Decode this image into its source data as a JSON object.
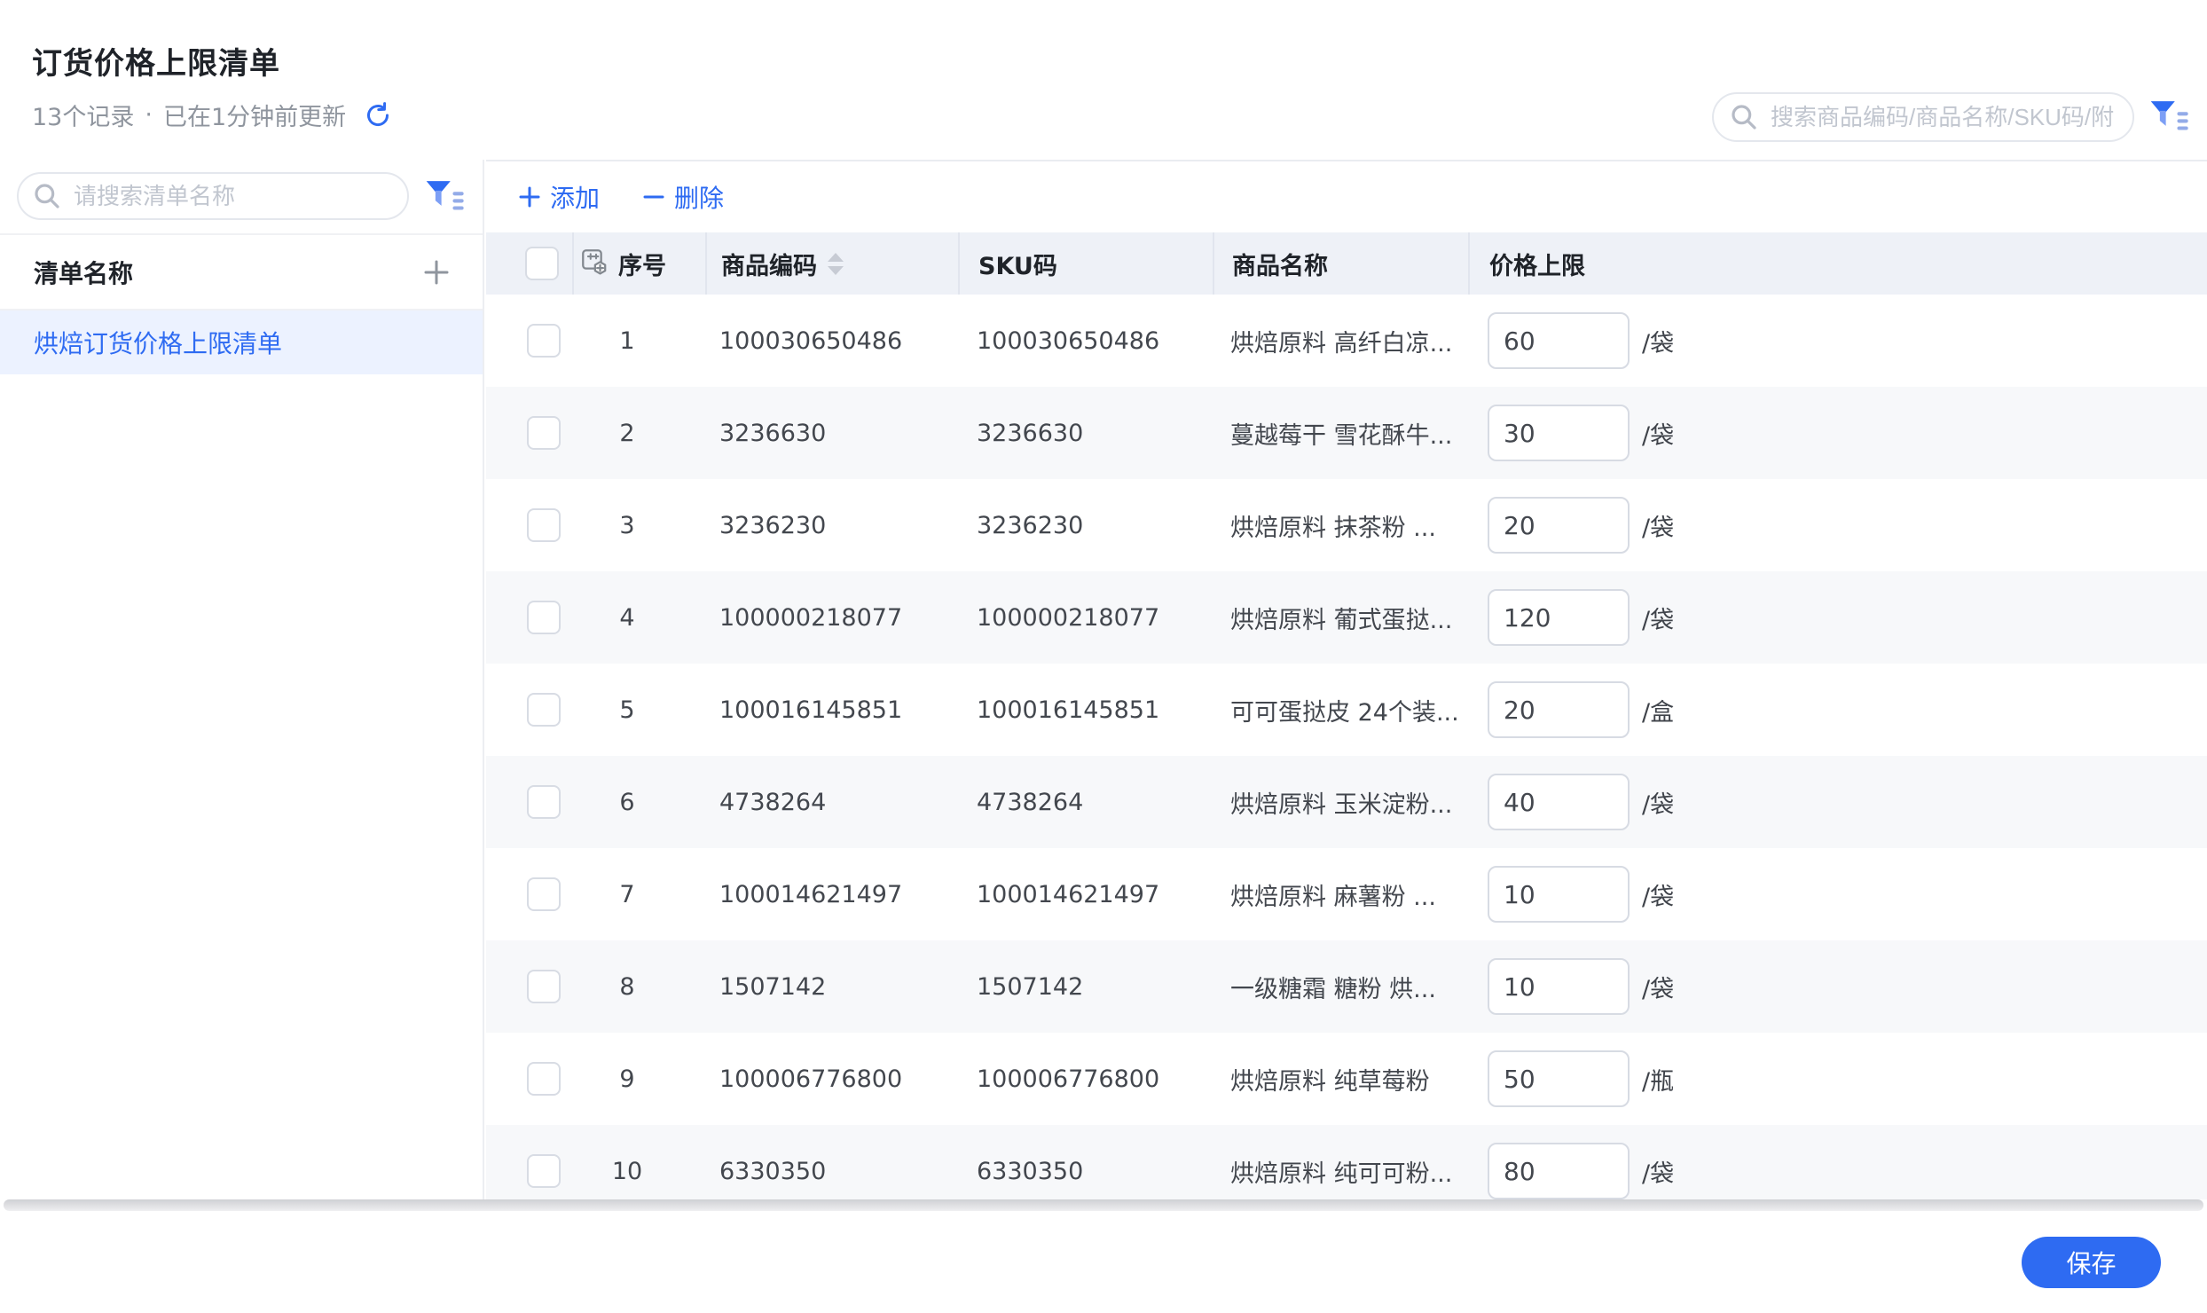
{
  "header": {
    "title": "订货价格上限清单",
    "record_count": "13个记录",
    "separator": "·",
    "updated": "已在1分钟前更新",
    "search_placeholder": "搜索商品编码/商品名称/SKU码/附"
  },
  "sidebar": {
    "search_placeholder": "请搜索清单名称",
    "section_title": "清单名称",
    "items": [
      {
        "label": "烘焙订货价格上限清单",
        "selected": true
      }
    ]
  },
  "toolbar": {
    "add_label": "添加",
    "delete_label": "删除"
  },
  "table": {
    "columns": {
      "index": "序号",
      "product_code": "商品编码",
      "sku": "SKU码",
      "product_name": "商品名称",
      "price_cap": "价格上限"
    },
    "rows": [
      {
        "index": "1",
        "code": "100030650486",
        "sku": "100030650486",
        "name": "烘焙原料 高纤白凉...",
        "price": "60",
        "unit": "/袋"
      },
      {
        "index": "2",
        "code": "3236630",
        "sku": "3236630",
        "name": "蔓越莓干 雪花酥牛...",
        "price": "30",
        "unit": "/袋"
      },
      {
        "index": "3",
        "code": "3236230",
        "sku": "3236230",
        "name": "烘焙原料 抹茶粉 ...",
        "price": "20",
        "unit": "/袋"
      },
      {
        "index": "4",
        "code": "100000218077",
        "sku": "100000218077",
        "name": "烘焙原料 葡式蛋挞...",
        "price": "120",
        "unit": "/袋"
      },
      {
        "index": "5",
        "code": "100016145851",
        "sku": "100016145851",
        "name": "可可蛋挞皮 24个装...",
        "price": "20",
        "unit": "/盒"
      },
      {
        "index": "6",
        "code": "4738264",
        "sku": "4738264",
        "name": "烘焙原料 玉米淀粉...",
        "price": "40",
        "unit": "/袋"
      },
      {
        "index": "7",
        "code": "100014621497",
        "sku": "100014621497",
        "name": "烘焙原料 麻薯粉 ...",
        "price": "10",
        "unit": "/袋"
      },
      {
        "index": "8",
        "code": "1507142",
        "sku": "1507142",
        "name": "一级糖霜 糖粉 烘...",
        "price": "10",
        "unit": "/袋"
      },
      {
        "index": "9",
        "code": "100006776800",
        "sku": "100006776800",
        "name": "烘焙原料 纯草莓粉",
        "price": "50",
        "unit": "/瓶"
      },
      {
        "index": "10",
        "code": "6330350",
        "sku": "6330350",
        "name": "烘焙原料 纯可可粉...",
        "price": "80",
        "unit": "/袋"
      }
    ]
  },
  "footer": {
    "save_label": "保存"
  },
  "icons": {
    "search": "magnifier",
    "filter": "funnel-with-lines",
    "refresh": "circular-arrow",
    "add": "plus",
    "delete": "minus",
    "index_header": "square-with-plus-and-hexagon",
    "sort": "caret-up-down"
  },
  "colors": {
    "accent": "#2E6BF2",
    "selected_item_bg": "#ECF2FF",
    "table_header_bg": "#EEF1F7",
    "row_alt_bg": "#F7F8FA",
    "text_primary": "#1F2329",
    "text_secondary": "#8F959E",
    "border": "#E4E7ED"
  }
}
